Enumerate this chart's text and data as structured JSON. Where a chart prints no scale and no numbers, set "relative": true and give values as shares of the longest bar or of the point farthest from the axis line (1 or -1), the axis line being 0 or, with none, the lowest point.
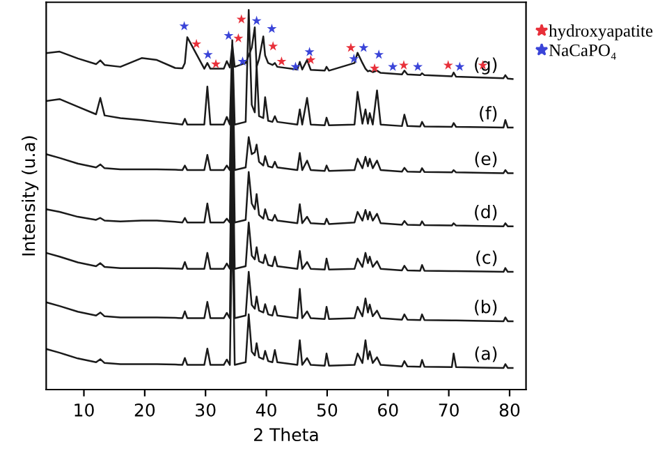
{
  "chart_data": {
    "type": "line",
    "relative": true,
    "xlabel": "2 Theta",
    "ylabel": "Intensity (u.a)",
    "xlim": [
      3.8,
      82.7
    ],
    "xticks": [
      10,
      20,
      30,
      40,
      50,
      60,
      70,
      80
    ],
    "tick_labels": "x",
    "grid": false,
    "legend": "top right",
    "line_style": "solid",
    "marker": "none",
    "x": [
      3.8,
      6,
      9,
      12,
      12.7,
      13.4,
      16,
      19.5,
      22,
      25,
      26.2,
      26.6,
      27.0,
      29.8,
      30.3,
      30.8,
      33,
      33.5,
      34.0,
      34.4,
      34.8,
      36.6,
      37.1,
      37.6,
      38.1,
      38.4,
      38.8,
      39.5,
      39.8,
      40.3,
      41.0,
      41.4,
      41.8,
      45.1,
      45.5,
      45.9,
      46.7,
      47.3,
      49.6,
      49.9,
      50.3,
      54.5,
      55.0,
      55.8,
      56.3,
      56.7,
      57.0,
      57.5,
      58.2,
      58.8,
      62.3,
      62.7,
      63.2,
      65.3,
      65.6,
      66.0,
      70.5,
      70.8,
      71.2,
      75.5,
      79.0,
      79.3,
      79.7,
      80.5
    ],
    "series": [
      {
        "name": "(a)",
        "color": "#1a1a1a",
        "values": [
          0.107,
          0.097,
          0.082,
          0.072,
          0.08,
          0.07,
          0.067,
          0.067,
          0.067,
          0.066,
          0.065,
          0.083,
          0.065,
          0.065,
          0.108,
          0.065,
          0.065,
          0.079,
          0.065,
          0.46,
          0.065,
          0.072,
          0.198,
          0.1,
          0.09,
          0.122,
          0.085,
          0.08,
          0.102,
          0.075,
          0.072,
          0.104,
          0.072,
          0.065,
          0.13,
          0.065,
          0.083,
          0.065,
          0.063,
          0.095,
          0.063,
          0.065,
          0.095,
          0.07,
          0.13,
          0.08,
          0.101,
          0.07,
          0.085,
          0.065,
          0.061,
          0.075,
          0.061,
          0.06,
          0.078,
          0.06,
          0.059,
          0.095,
          0.059,
          0.058,
          0.057,
          0.067,
          0.057,
          0.057
        ]
      },
      {
        "name": "(b)",
        "color": "#1a1a1a",
        "values": [
          0.23,
          0.22,
          0.205,
          0.195,
          0.203,
          0.193,
          0.19,
          0.19,
          0.19,
          0.189,
          0.188,
          0.206,
          0.188,
          0.188,
          0.231,
          0.188,
          0.188,
          0.202,
          0.188,
          0.6,
          0.188,
          0.195,
          0.31,
          0.223,
          0.213,
          0.245,
          0.208,
          0.203,
          0.225,
          0.198,
          0.195,
          0.22,
          0.195,
          0.188,
          0.265,
          0.188,
          0.206,
          0.188,
          0.186,
          0.218,
          0.186,
          0.188,
          0.218,
          0.193,
          0.24,
          0.203,
          0.224,
          0.193,
          0.208,
          0.188,
          0.184,
          0.198,
          0.184,
          0.183,
          0.198,
          0.183,
          0.182,
          0.182,
          0.182,
          0.181,
          0.18,
          0.19,
          0.18,
          0.18
        ]
      },
      {
        "name": "(c)",
        "color": "#1a1a1a",
        "values": [
          0.36,
          0.35,
          0.335,
          0.325,
          0.333,
          0.323,
          0.32,
          0.32,
          0.32,
          0.319,
          0.318,
          0.336,
          0.318,
          0.318,
          0.36,
          0.318,
          0.318,
          0.332,
          0.318,
          0.72,
          0.318,
          0.325,
          0.44,
          0.353,
          0.343,
          0.375,
          0.338,
          0.333,
          0.355,
          0.328,
          0.325,
          0.35,
          0.325,
          0.318,
          0.365,
          0.318,
          0.336,
          0.318,
          0.316,
          0.345,
          0.316,
          0.318,
          0.345,
          0.323,
          0.36,
          0.333,
          0.35,
          0.323,
          0.338,
          0.318,
          0.314,
          0.326,
          0.314,
          0.313,
          0.328,
          0.313,
          0.312,
          0.312,
          0.312,
          0.311,
          0.31,
          0.32,
          0.31,
          0.31
        ]
      },
      {
        "name": "(d)",
        "color": "#1a1a1a",
        "values": [
          0.475,
          0.468,
          0.455,
          0.447,
          0.452,
          0.445,
          0.443,
          0.445,
          0.445,
          0.442,
          0.44,
          0.452,
          0.44,
          0.44,
          0.49,
          0.44,
          0.44,
          0.45,
          0.44,
          0.84,
          0.44,
          0.447,
          0.573,
          0.49,
          0.475,
          0.515,
          0.46,
          0.45,
          0.475,
          0.448,
          0.445,
          0.46,
          0.445,
          0.438,
          0.488,
          0.438,
          0.455,
          0.438,
          0.436,
          0.45,
          0.436,
          0.44,
          0.468,
          0.445,
          0.473,
          0.448,
          0.468,
          0.445,
          0.463,
          0.438,
          0.434,
          0.444,
          0.434,
          0.433,
          0.443,
          0.433,
          0.432,
          0.438,
          0.432,
          0.431,
          0.43,
          0.438,
          0.43,
          0.43
        ]
      },
      {
        "name": "(e)",
        "color": "#1a1a1a",
        "values": [
          0.62,
          0.61,
          0.595,
          0.585,
          0.593,
          0.583,
          0.58,
          0.58,
          0.58,
          0.579,
          0.578,
          0.59,
          0.578,
          0.578,
          0.618,
          0.578,
          0.578,
          0.59,
          0.578,
          0.89,
          0.578,
          0.585,
          0.665,
          0.62,
          0.625,
          0.645,
          0.6,
          0.59,
          0.615,
          0.588,
          0.585,
          0.6,
          0.585,
          0.578,
          0.623,
          0.578,
          0.603,
          0.578,
          0.576,
          0.59,
          0.576,
          0.578,
          0.608,
          0.583,
          0.613,
          0.588,
          0.608,
          0.583,
          0.603,
          0.578,
          0.574,
          0.584,
          0.574,
          0.573,
          0.583,
          0.573,
          0.572,
          0.578,
          0.572,
          0.571,
          0.57,
          0.578,
          0.57,
          0.57
        ]
      },
      {
        "name": "(f)",
        "color": "#1a1a1a",
        "values": [
          0.76,
          0.765,
          0.745,
          0.725,
          0.768,
          0.722,
          0.715,
          0.71,
          0.705,
          0.7,
          0.698,
          0.713,
          0.698,
          0.698,
          0.798,
          0.698,
          0.698,
          0.718,
          0.698,
          0.92,
          0.698,
          0.705,
          1.0,
          0.75,
          0.73,
          0.855,
          0.72,
          0.715,
          0.77,
          0.708,
          0.705,
          0.72,
          0.705,
          0.698,
          0.738,
          0.698,
          0.768,
          0.698,
          0.696,
          0.716,
          0.696,
          0.698,
          0.784,
          0.7,
          0.738,
          0.7,
          0.728,
          0.698,
          0.788,
          0.698,
          0.694,
          0.724,
          0.694,
          0.693,
          0.705,
          0.693,
          0.692,
          0.702,
          0.692,
          0.691,
          0.69,
          0.71,
          0.69,
          0.69
        ]
      },
      {
        "name": "(g)",
        "color": "#1a1a1a",
        "values": [
          0.886,
          0.89,
          0.872,
          0.857,
          0.867,
          0.855,
          0.85,
          0.873,
          0.868,
          0.847,
          0.846,
          0.86,
          0.928,
          0.845,
          0.86,
          0.845,
          0.845,
          0.865,
          0.848,
          0.907,
          0.85,
          0.86,
          0.88,
          0.9,
          0.954,
          0.85,
          0.87,
          0.93,
          0.88,
          0.86,
          0.855,
          0.86,
          0.85,
          0.843,
          0.863,
          0.843,
          0.868,
          0.842,
          0.84,
          0.85,
          0.84,
          0.86,
          0.887,
          0.86,
          0.845,
          0.838,
          0.84,
          0.836,
          0.84,
          0.834,
          0.83,
          0.84,
          0.83,
          0.828,
          0.833,
          0.828,
          0.825,
          0.835,
          0.824,
          0.822,
          0.82,
          0.828,
          0.819,
          0.818
        ]
      },
      {
        "name": "hydroxyapatite",
        "type": "scatter",
        "marker": "star",
        "color": "#e8303a",
        "x": [
          28.5,
          31.7,
          35.4,
          35.9,
          41.1,
          42.5,
          47.3,
          53.9,
          57.8,
          62.6,
          69.9,
          75.6
        ],
        "values": [
          0.91,
          0.857,
          0.925,
          0.975,
          0.904,
          0.864,
          0.868,
          0.9,
          0.846,
          0.854,
          0.854,
          0.854
        ]
      },
      {
        "name": "NaCaPO₄",
        "type": "scatter",
        "marker": "star",
        "color": "#3a44d8",
        "x": [
          26.5,
          30.4,
          33.8,
          36.1,
          38.4,
          40.9,
          44.8,
          47.1,
          54.4,
          56.0,
          58.5,
          60.8,
          64.9,
          71.8
        ],
        "values": [
          0.957,
          0.882,
          0.932,
          0.864,
          0.971,
          0.95,
          0.85,
          0.889,
          0.871,
          0.9,
          0.882,
          0.85,
          0.85,
          0.85
        ]
      }
    ]
  }
}
